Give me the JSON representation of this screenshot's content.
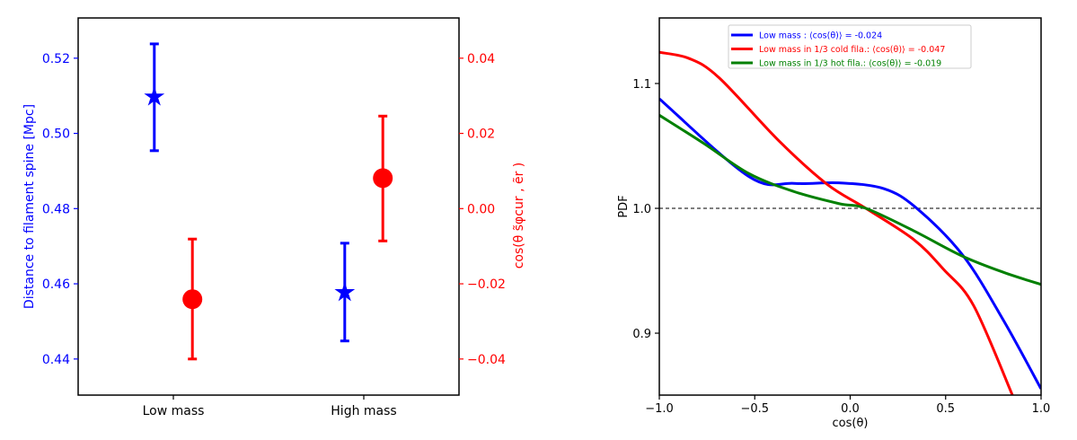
{
  "chart_data": [
    {
      "type": "scatter",
      "categories": [
        "Low mass",
        "High mass"
      ],
      "xlim": [
        -0.5,
        1.5
      ],
      "left_axis": {
        "label": "Distance to filament spine [Mpc]",
        "color": "#0000ff",
        "ylim": [
          0.4304,
          0.5307
        ],
        "ticks": [
          0.44,
          0.46,
          0.48,
          0.5,
          0.52
        ]
      },
      "right_axis": {
        "label": "cos(θ s̃φcur , ẽr )",
        "color": "#ff0000",
        "ylim": [
          -0.0496,
          0.0507
        ],
        "ticks": [
          -0.04,
          -0.02,
          0.0,
          0.02,
          0.04
        ]
      },
      "series": [
        {
          "axis": "left",
          "marker": "star",
          "color": "#0000ff",
          "offset": -0.1,
          "values": [
            0.5097,
            0.4577
          ],
          "err_low": [
            0.4954,
            0.4448
          ],
          "err_high": [
            0.5238,
            0.4708
          ]
        },
        {
          "axis": "right",
          "marker": "circle",
          "color": "#ff0000",
          "offset": 0.1,
          "values": [
            -0.0241,
            0.0081
          ],
          "err_low": [
            -0.04,
            -0.0086
          ],
          "err_high": [
            -0.0081,
            0.0246
          ]
        }
      ],
      "grid": false
    },
    {
      "type": "line",
      "xlabel": "cos(θ)",
      "ylabel": "PDF",
      "xlim": [
        -1.0,
        1.0
      ],
      "ylim": [
        0.8504,
        1.1525
      ],
      "xticks": [
        "−1.0",
        "−0.5",
        "0.0",
        "0.5",
        "1.0"
      ],
      "xtick_values": [
        -1,
        -0.5,
        0,
        0.5,
        1
      ],
      "yticks": [
        "0.9",
        "1.0",
        "1.1"
      ],
      "ytick_values": [
        0.9,
        1.0,
        1.1
      ],
      "reference_line": 1.0,
      "grid": false,
      "legend_placement": "top-center",
      "series": [
        {
          "name": "Low mass :  ⟨cos(θ)⟩ = -0.024",
          "color": "#0000ff",
          "x": [
            -1.0,
            -0.53,
            -0.294,
            -0.059,
            0.176,
            0.349,
            0.592,
            0.804,
            1.0
          ],
          "y": [
            1.0878,
            1.0254,
            1.02,
            1.0204,
            1.0158,
            1.0,
            0.962,
            0.91,
            0.8554
          ]
        },
        {
          "name": "Low mass in 1/3 cold fila.:   ⟨cos(θ)⟩ = -0.047",
          "color": "#ff0000",
          "x": [
            -1.0,
            -0.843,
            -0.686,
            -0.373,
            -0.122,
            0.082,
            0.333,
            0.49,
            0.647,
            0.851
          ],
          "y": [
            1.125,
            1.12,
            1.1045,
            1.054,
            1.0194,
            1.0,
            0.975,
            0.951,
            0.922,
            0.85
          ]
        },
        {
          "name": "Low mass in 1/3 hot fila.:  ⟨cos(θ)⟩ = -0.019",
          "color": "#008000",
          "x": [
            -1.0,
            -0.765,
            -0.53,
            -0.294,
            -0.059,
            0.082,
            0.333,
            0.584,
            0.804,
            1.0
          ],
          "y": [
            1.0746,
            1.0518,
            1.0278,
            1.0134,
            1.0038,
            1.0,
            0.982,
            0.962,
            0.9487,
            0.939
          ]
        }
      ]
    }
  ]
}
